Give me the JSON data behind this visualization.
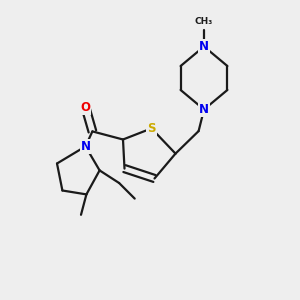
{
  "bg_color": "#eeeeee",
  "bond_color": "#1a1a1a",
  "bond_width": 1.6,
  "atom_colors": {
    "N": "#0000ee",
    "O": "#ee0000",
    "S": "#ccaa00",
    "C": "#1a1a1a"
  },
  "font_size": 8.5,
  "figsize": [
    3.0,
    3.0
  ],
  "dpi": 100
}
